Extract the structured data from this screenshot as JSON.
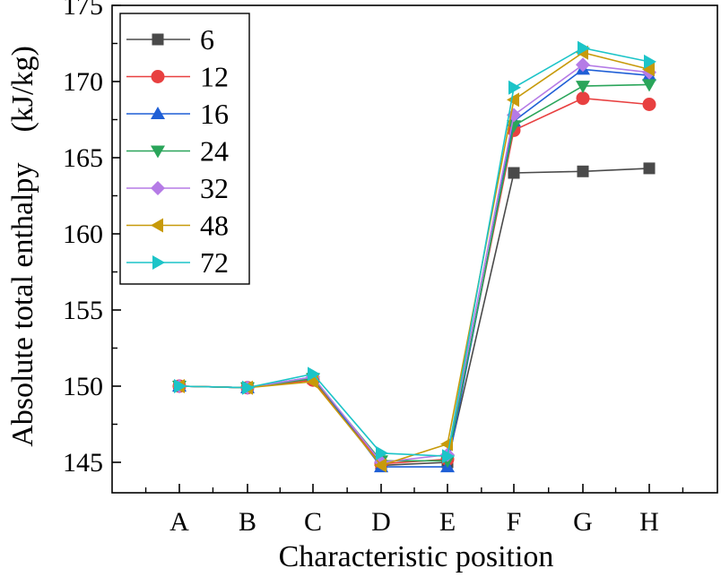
{
  "chart_data": {
    "type": "line",
    "xlabel": "Characteristic position",
    "ylabel": "Absolute total enthalpy　(kJ/kg)",
    "categories": [
      "A",
      "B",
      "C",
      "D",
      "E",
      "F",
      "G",
      "H"
    ],
    "ylim": [
      143,
      175
    ],
    "yticks": [
      145,
      150,
      155,
      160,
      165,
      170,
      175
    ],
    "legend_position": "top-left",
    "series": [
      {
        "name": "6",
        "color": "#4a4a4a",
        "marker": "square",
        "values": [
          150.0,
          149.9,
          150.5,
          144.8,
          145.0,
          164.0,
          164.1,
          164.3
        ]
      },
      {
        "name": "12",
        "color": "#e84040",
        "marker": "circle",
        "values": [
          150.0,
          149.9,
          150.4,
          144.9,
          145.2,
          166.8,
          168.9,
          168.5
        ]
      },
      {
        "name": "16",
        "color": "#1f5fd6",
        "marker": "triangle-up",
        "values": [
          150.0,
          149.9,
          150.6,
          144.7,
          144.7,
          167.4,
          170.8,
          170.4
        ]
      },
      {
        "name": "24",
        "color": "#2aa55a",
        "marker": "triangle-down",
        "values": [
          150.0,
          149.9,
          150.5,
          145.1,
          145.1,
          167.1,
          169.7,
          169.8
        ]
      },
      {
        "name": "32",
        "color": "#b57be6",
        "marker": "diamond",
        "values": [
          150.0,
          149.9,
          150.6,
          145.0,
          145.5,
          167.8,
          171.1,
          170.6
        ]
      },
      {
        "name": "48",
        "color": "#c79a0a",
        "marker": "triangle-left",
        "values": [
          150.0,
          149.9,
          150.3,
          144.8,
          146.2,
          168.8,
          171.9,
          170.8
        ]
      },
      {
        "name": "72",
        "color": "#1cc4c8",
        "marker": "triangle-right",
        "values": [
          150.0,
          149.9,
          150.8,
          145.6,
          145.4,
          169.6,
          172.2,
          171.3
        ]
      }
    ]
  }
}
